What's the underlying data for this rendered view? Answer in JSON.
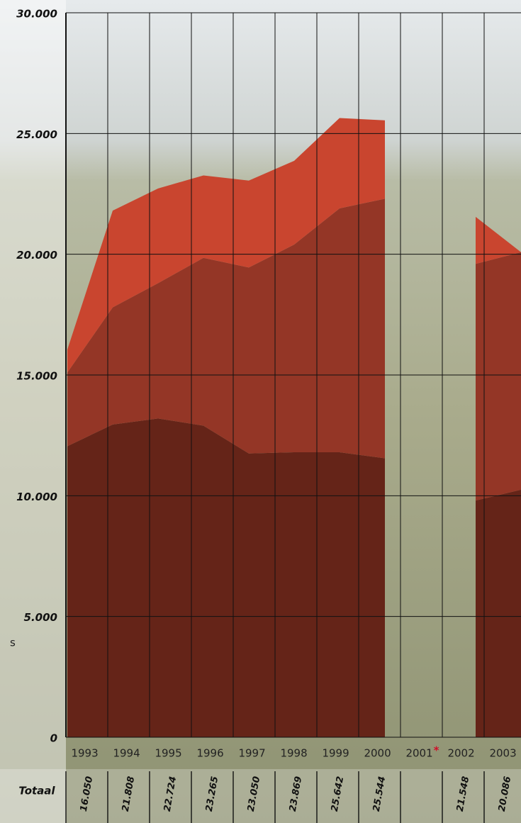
{
  "chart_data": {
    "type": "area",
    "categories": [
      "1993",
      "1994",
      "1995",
      "1996",
      "1997",
      "1998",
      "1999",
      "2000",
      "2001",
      "2002",
      "2003"
    ],
    "category_marks": [
      null,
      null,
      null,
      null,
      null,
      null,
      null,
      null,
      "*",
      null,
      null
    ],
    "series": [
      {
        "color": "#652418",
        "values": [
          12050,
          12950,
          13200,
          12900,
          11750,
          11800,
          11800,
          11550,
          null,
          9800,
          10250
        ]
      },
      {
        "color": "#943626",
        "values": [
          3050,
          4850,
          5600,
          6950,
          7700,
          8600,
          10100,
          10750,
          null,
          9800,
          9836
        ]
      },
      {
        "color": "#c9452f",
        "values": [
          950,
          4008,
          3924,
          3415,
          3600,
          3469,
          3742,
          3244,
          null,
          1948,
          0
        ]
      }
    ],
    "ylim": [
      0,
      30000
    ],
    "yticks": [
      0,
      {
        "value": 5000,
        "label": "5.000"
      },
      {
        "value": 10000,
        "label": "10.000"
      },
      {
        "value": 15000,
        "label": "15.000"
      },
      {
        "value": 20000,
        "label": "20.000"
      },
      {
        "value": 25000,
        "label": "25.000"
      },
      {
        "value": 30000,
        "label": "30.000"
      }
    ],
    "grid": true,
    "totals": {
      "label": "Totaal",
      "labels": [
        "16.050",
        "21.808",
        "22.724",
        "23.265",
        "23.050",
        "23.869",
        "25.642",
        "25.544",
        null,
        "21.548",
        "20.086"
      ]
    },
    "side_text": "s"
  }
}
